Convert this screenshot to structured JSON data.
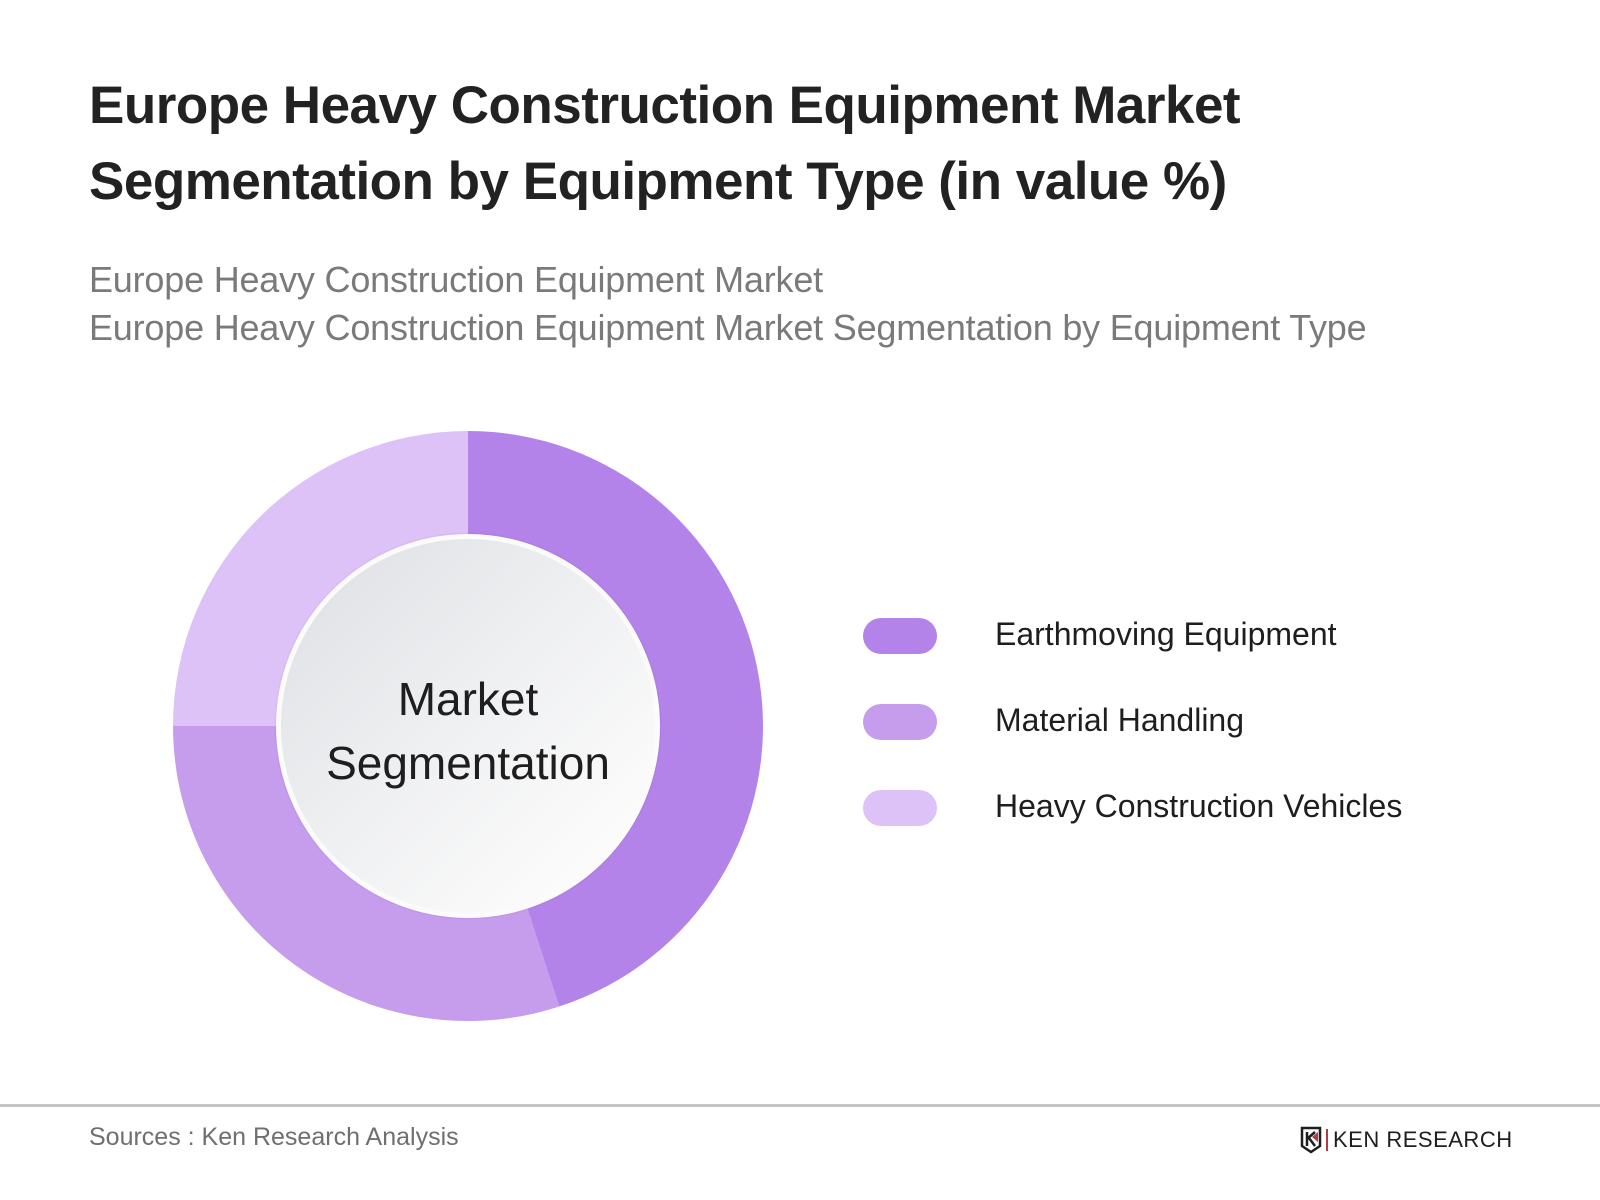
{
  "header": {
    "title_lines": [
      "Europe Heavy Construction Equipment Market",
      "Segmentation by Equipment Type (in value %)"
    ],
    "subtitle_lines": [
      "Europe Heavy Construction Equipment Market",
      "Europe Heavy Construction Equipment Market Segmentation by Equipment Type"
    ]
  },
  "donut": {
    "center_label_lines": [
      "Market",
      "Segmentation"
    ]
  },
  "legend": {
    "items": [
      {
        "label": "Earthmoving Equipment",
        "color": "#b383e9"
      },
      {
        "label": "Material Handling",
        "color": "#c69ced"
      },
      {
        "label": "Heavy Construction Vehicles",
        "color": "#dcc2f6"
      }
    ]
  },
  "footer": {
    "sources": "Sources : Ken Research Analysis",
    "logo_text": "KEN RESEARCH"
  },
  "chart_data": {
    "type": "pie",
    "subtype": "donut",
    "title": "Europe Heavy Construction Equipment Market Segmentation by Equipment Type (in value %)",
    "subtitle": "Europe Heavy Construction Equipment Market Segmentation by Equipment Type",
    "categories": [
      "Earthmoving Equipment",
      "Material Handling",
      "Heavy Construction Vehicles"
    ],
    "values": [
      45,
      30,
      25
    ],
    "unit": "%",
    "colors": [
      "#b383e9",
      "#c69ced",
      "#dcc2f6"
    ],
    "center_label": "Market Segmentation",
    "start_angle": "12 o'clock, clockwise",
    "legend_position": "right",
    "data_labels_shown": false
  }
}
